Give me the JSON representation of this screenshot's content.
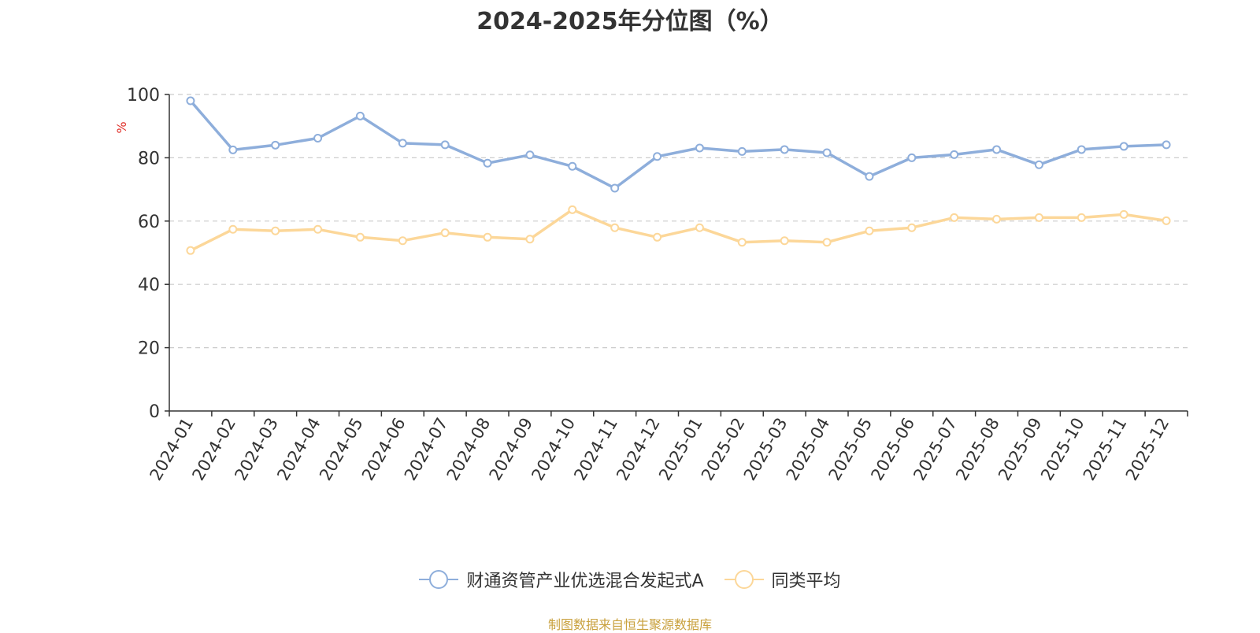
{
  "chart_data": {
    "type": "line",
    "title": "2024-2025年分位图（%）",
    "ylabel": "%",
    "xlabel": "",
    "ylim": [
      0,
      100
    ],
    "yticks": [
      0,
      20,
      40,
      60,
      80,
      100
    ],
    "ytick_labels": [
      "0",
      "20",
      "40",
      "60",
      "80",
      "100"
    ],
    "grid": "horizontal-dashed",
    "legend_position": "bottom-center",
    "categories": [
      "2024-01",
      "2024-02",
      "2024-03",
      "2024-04",
      "2024-05",
      "2024-06",
      "2024-07",
      "2024-08",
      "2024-09",
      "2024-10",
      "2024-11",
      "2024-12",
      "2025-01",
      "2025-02",
      "2025-03",
      "2025-04",
      "2025-05",
      "2025-06",
      "2025-07",
      "2025-08",
      "2025-09",
      "2025-10",
      "2025-11",
      "2025-12"
    ],
    "series": [
      {
        "name": "财通资管产业优选混合发起式A",
        "color": "#8eaedb",
        "values": [
          98,
          82.5,
          84,
          86.2,
          93.2,
          84.6,
          84.1,
          78.3,
          80.9,
          77.3,
          70.4,
          80.4,
          83.1,
          82,
          82.6,
          81.6,
          74.1,
          80,
          81,
          82.6,
          77.8,
          82.6,
          83.6,
          84.1
        ]
      },
      {
        "name": "同类平均",
        "color": "#fcd799",
        "values": [
          50.7,
          57.4,
          56.9,
          57.4,
          54.9,
          53.8,
          56.3,
          54.9,
          54.3,
          63.6,
          57.9,
          54.9,
          57.9,
          53.3,
          53.8,
          53.3,
          56.9,
          57.9,
          61.1,
          60.6,
          61.1,
          61.1,
          62.1,
          60.1
        ]
      }
    ]
  },
  "footer": {
    "source": "制图数据来自恒生聚源数据库"
  },
  "colors": {
    "axis": "#333333",
    "grid": "#cccccc",
    "unit_label": "#e0302a",
    "source": "#c9a13e"
  }
}
